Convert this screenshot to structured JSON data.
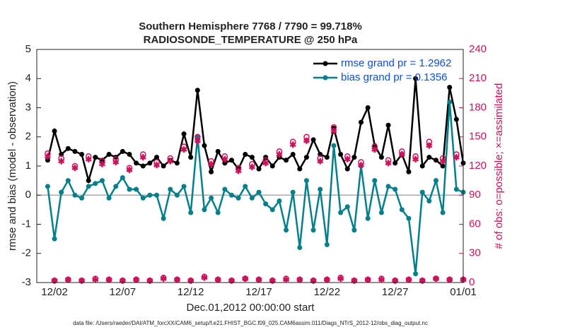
{
  "chart_data": {
    "type": "line",
    "title": "Southern Hemisphere 7768 / 7790 = 99.718%",
    "subtitle": "RADIOSONDE_TEMPERATURE @ 250 hPa",
    "xlabel": "Dec.01,2012 00:00:00 start",
    "ylabel": "rmse and bias (model - observation)",
    "y2label": "# of obs: o=possible; ×=assimilated",
    "footnote": "data file: /Users/raeder/DAI/ATM_forcXX/CAM6_setup/f.e21.FHIST_BGC.f09_025.CAM6assim.011/Diags_NTrS_2012-12/obs_diag_output.nc",
    "x": [
      0.5,
      1,
      1.5,
      2,
      2.5,
      3,
      3.5,
      4,
      4.5,
      5,
      5.5,
      6,
      6.5,
      7,
      7.5,
      8,
      8.5,
      9,
      9.5,
      10,
      10.5,
      11,
      11.5,
      12,
      12.5,
      13,
      13.5,
      14,
      14.5,
      15,
      15.5,
      16,
      16.5,
      17,
      17.5,
      18,
      18.5,
      19,
      19.5,
      20,
      20.5,
      21,
      21.5,
      22,
      22.5,
      23,
      23.5,
      24,
      24.5,
      25,
      25.5,
      26,
      26.5,
      27,
      27.5,
      28,
      28.5,
      29,
      29.5,
      30,
      30.5,
      31
    ],
    "xlim": [
      -0.3,
      31
    ],
    "xticks": [
      {
        "value": 1,
        "label": "12/02"
      },
      {
        "value": 6,
        "label": "12/07"
      },
      {
        "value": 11,
        "label": "12/12"
      },
      {
        "value": 16,
        "label": "12/17"
      },
      {
        "value": 21,
        "label": "12/22"
      },
      {
        "value": 26,
        "label": "12/27"
      },
      {
        "value": 31,
        "label": "01/01"
      }
    ],
    "ylim": [
      -3,
      5
    ],
    "yticks": [
      -3,
      -2,
      -1,
      0,
      1,
      2,
      3,
      4,
      5
    ],
    "y2lim": [
      0,
      240
    ],
    "y2ticks": [
      0,
      30,
      60,
      90,
      120,
      150,
      180,
      210,
      240
    ],
    "legend": "upper right",
    "series": [
      {
        "name": "rmse grand pr = 1.2962",
        "color": "#000000",
        "marker": "o",
        "line": true,
        "values": [
          1.2,
          2.2,
          1.4,
          1.6,
          1.5,
          1.4,
          0.5,
          1.3,
          1.2,
          1.4,
          1.3,
          1.5,
          1.4,
          1.1,
          1.0,
          1.1,
          1.3,
          1.0,
          1.2,
          1.1,
          2.1,
          1.3,
          3.6,
          1.7,
          0.8,
          1.5,
          1.1,
          1.2,
          0.9,
          1.4,
          1.3,
          0.9,
          1.3,
          1.0,
          1.3,
          1.2,
          1.4,
          0.9,
          1.3,
          1.9,
          1.4,
          1.3,
          2.3,
          1.4,
          0.9,
          1.3,
          2.5,
          3.0,
          1.7,
          1.3,
          2.4,
          1.1,
          1.4,
          0.8,
          4.0,
          1.0,
          1.3,
          1.2,
          1.0,
          3.7,
          2.6,
          1.1
        ]
      },
      {
        "name": "bias grand pr = 0.1356",
        "color": "#00808a",
        "marker": "o",
        "line": true,
        "values": [
          0.3,
          -1.5,
          0.1,
          0.5,
          0.0,
          -0.1,
          0.3,
          0.4,
          0.5,
          -0.1,
          0.3,
          0.6,
          0.2,
          0.2,
          -0.1,
          0.0,
          0.0,
          -0.8,
          0.2,
          0.0,
          0.3,
          -0.6,
          2.0,
          -0.5,
          -0.1,
          -0.6,
          0.2,
          0.0,
          -0.1,
          0.3,
          -0.1,
          0.1,
          -0.3,
          -0.5,
          -0.2,
          -1.2,
          0.1,
          -1.8,
          0.5,
          -1.2,
          0.2,
          -1.7,
          1.7,
          -0.6,
          -0.4,
          -1.2,
          1.0,
          -0.8,
          0.5,
          -0.6,
          0.3,
          0.2,
          -0.5,
          -0.8,
          -2.7,
          0.1,
          -0.2,
          0.5,
          -0.6,
          3.2,
          0.2,
          0.1
        ]
      },
      {
        "color": "#d0105a",
        "marker": "circle",
        "line": false,
        "axis": "y2",
        "values": [
          133,
          2,
          128,
          3,
          120,
          2,
          130,
          4,
          125,
          3,
          127,
          2,
          118,
          3,
          132,
          2,
          124,
          5,
          128,
          3,
          140,
          2,
          150,
          6,
          125,
          3,
          130,
          2,
          118,
          4,
          122,
          3,
          126,
          2,
          135,
          4,
          145,
          3,
          150,
          2,
          128,
          3,
          160,
          5,
          130,
          2,
          124,
          3,
          140,
          4,
          126,
          2,
          135,
          3,
          130,
          2,
          145,
          4,
          128,
          3,
          132,
          3
        ]
      },
      {
        "color": "#d0105a",
        "marker": "star",
        "line": false,
        "axis": "y2",
        "values": [
          130,
          2,
          125,
          3,
          118,
          2,
          127,
          3,
          122,
          3,
          124,
          2,
          116,
          3,
          129,
          2,
          121,
          4,
          125,
          3,
          137,
          2,
          146,
          5,
          122,
          3,
          127,
          2,
          115,
          4,
          119,
          3,
          123,
          2,
          132,
          3,
          142,
          3,
          146,
          2,
          125,
          3,
          156,
          4,
          127,
          2,
          121,
          3,
          137,
          3,
          123,
          2,
          132,
          3,
          127,
          2,
          141,
          4,
          125,
          3,
          129,
          3
        ]
      }
    ]
  }
}
